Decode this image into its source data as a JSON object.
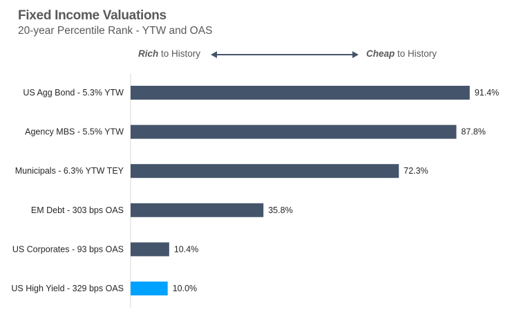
{
  "chart_data": {
    "type": "bar",
    "orientation": "horizontal",
    "title": "Fixed Income Valuations",
    "subtitle": "20-year Percentile Rank - YTW and OAS",
    "annotation": {
      "left_bold": "Rich",
      "left_rest": " to History",
      "right_bold": "Cheap",
      "right_rest": " to History"
    },
    "categories": [
      "US Agg Bond - 5.3% YTW",
      "Agency MBS - 5.5% YTW",
      "Municipals - 6.3% YTW TEY",
      "EM Debt - 303 bps OAS",
      "US Corporates - 93 bps OAS",
      "US High Yield - 329 bps OAS"
    ],
    "values": [
      91.4,
      87.8,
      72.3,
      35.8,
      10.4,
      10.0
    ],
    "value_labels": [
      "91.4%",
      "87.8%",
      "72.3%",
      "35.8%",
      "10.4%",
      "10.0%"
    ],
    "xlim": [
      0,
      100
    ],
    "grid": false,
    "colors": {
      "bar": "#44546a",
      "highlight": "#00a2ff",
      "axis": "#d9d9d9",
      "arrow": "#44546a"
    },
    "highlight_index": 5
  }
}
